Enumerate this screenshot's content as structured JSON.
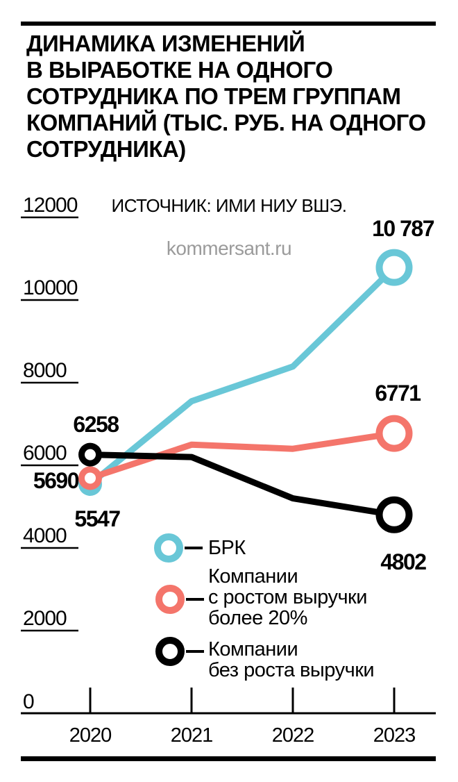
{
  "header": {
    "title_lines": [
      "ДИНАМИКА ИЗМЕНЕНИЙ",
      "В ВЫРАБОТКЕ НА ОДНОГО",
      "СОТРУДНИКА ПО ТРЕМ ГРУППАМ",
      "КОМПАНИЙ (ТЫС. РУБ. НА ОДНОГО",
      "СОТРУДНИКА)"
    ],
    "source": "ИСТОЧНИК: ИМИ НИУ ВШЭ.",
    "watermark": "kommersant.ru"
  },
  "colors": {
    "brk": "#69C7D7",
    "growth20": "#F4756B",
    "no_growth": "#000000",
    "watermark_gray": "#9B9B9B"
  },
  "chart_data": {
    "type": "line",
    "title": "ДИНАМИКА ИЗМЕНЕНИЙ В ВЫРАБОТКЕ НА ОДНОГО СОТРУДНИКА ПО ТРЕМ ГРУППАМ КОМПАНИЙ (ТЫС. РУБ. НА ОДНОГО СОТРУДНИКА)",
    "source": "ИСТОЧНИК: ИМИ НИУ ВШЭ.",
    "categories": [
      "2020",
      "2021",
      "2022",
      "2023"
    ],
    "yticks": [
      12000,
      10000,
      8000,
      6000,
      4000,
      2000,
      0
    ],
    "ylim": [
      0,
      12000
    ],
    "grid": false,
    "legend_position": "inside-bottom-center",
    "series": [
      {
        "id": "brk",
        "name": "БРК",
        "color": "#69C7D7",
        "values": [
          5547,
          7550,
          8390,
          10787
        ],
        "start_label": "5547",
        "end_label": "10 787"
      },
      {
        "id": "growth20",
        "name": "Компании с ростом выручки более 20%",
        "color": "#F4756B",
        "values": [
          5690,
          6500,
          6400,
          6771
        ],
        "start_label": "5690",
        "end_label": "6771"
      },
      {
        "id": "no-growth",
        "name": "Компании без роста выручки",
        "color": "#000000",
        "values": [
          6258,
          6200,
          5200,
          4802
        ],
        "start_label": "6258",
        "end_label": "4802"
      }
    ]
  },
  "legend": {
    "items": [
      {
        "id": "brk",
        "color": "#69C7D7",
        "label_lines": [
          "БРК"
        ]
      },
      {
        "id": "growth20",
        "color": "#F4756B",
        "label_lines": [
          "Компании",
          "с ростом выручки",
          "более 20%"
        ]
      },
      {
        "id": "no-growth",
        "color": "#000000",
        "label_lines": [
          "Компании",
          "без роста выручки"
        ]
      }
    ]
  }
}
